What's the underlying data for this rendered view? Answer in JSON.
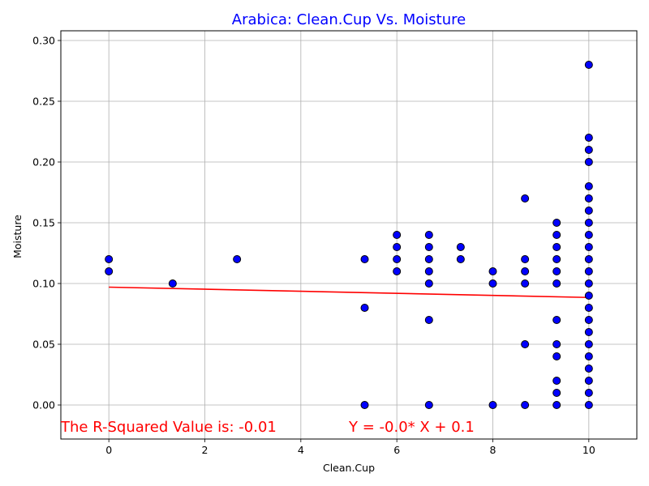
{
  "chart_data": {
    "type": "scatter",
    "title": "Arabica: Clean.Cup Vs. Moisture",
    "xlabel": "Clean.Cup",
    "ylabel": "Moisture",
    "xlim": [
      -1,
      11
    ],
    "ylim": [
      -0.028,
      0.308
    ],
    "xticks": [
      "0",
      "2",
      "4",
      "6",
      "8",
      "10"
    ],
    "yticks": [
      "0.00",
      "0.05",
      "0.10",
      "0.15",
      "0.20",
      "0.25",
      "0.30"
    ],
    "grid": true,
    "marker_color": "#0000ff",
    "marker_edge_color": "#000000",
    "line_color": "#ff0000",
    "title_color": "#0000ff",
    "annotation_color": "#ff0000",
    "points": [
      [
        0,
        0.12
      ],
      [
        0,
        0.11
      ],
      [
        1.33,
        0.1
      ],
      [
        2.67,
        0.12
      ],
      [
        5.33,
        0.12
      ],
      [
        5.33,
        0.08
      ],
      [
        5.33,
        0.0
      ],
      [
        6.0,
        0.14
      ],
      [
        6.0,
        0.13
      ],
      [
        6.0,
        0.12
      ],
      [
        6.0,
        0.11
      ],
      [
        6.67,
        0.14
      ],
      [
        6.67,
        0.13
      ],
      [
        6.67,
        0.12
      ],
      [
        6.67,
        0.11
      ],
      [
        6.67,
        0.1
      ],
      [
        6.67,
        0.07
      ],
      [
        6.67,
        0.0
      ],
      [
        7.33,
        0.13
      ],
      [
        7.33,
        0.12
      ],
      [
        8.0,
        0.11
      ],
      [
        8.0,
        0.1
      ],
      [
        8.0,
        0.0
      ],
      [
        8.67,
        0.17
      ],
      [
        8.67,
        0.12
      ],
      [
        8.67,
        0.11
      ],
      [
        8.67,
        0.1
      ],
      [
        8.67,
        0.05
      ],
      [
        8.67,
        0.0
      ],
      [
        9.33,
        0.15
      ],
      [
        9.33,
        0.14
      ],
      [
        9.33,
        0.13
      ],
      [
        9.33,
        0.12
      ],
      [
        9.33,
        0.11
      ],
      [
        9.33,
        0.1
      ],
      [
        9.33,
        0.07
      ],
      [
        9.33,
        0.05
      ],
      [
        9.33,
        0.04
      ],
      [
        9.33,
        0.02
      ],
      [
        9.33,
        0.01
      ],
      [
        9.33,
        0.0
      ],
      [
        10,
        0.28
      ],
      [
        10,
        0.22
      ],
      [
        10,
        0.21
      ],
      [
        10,
        0.2
      ],
      [
        10,
        0.18
      ],
      [
        10,
        0.17
      ],
      [
        10,
        0.16
      ],
      [
        10,
        0.15
      ],
      [
        10,
        0.14
      ],
      [
        10,
        0.13
      ],
      [
        10,
        0.12
      ],
      [
        10,
        0.11
      ],
      [
        10,
        0.1
      ],
      [
        10,
        0.09
      ],
      [
        10,
        0.08
      ],
      [
        10,
        0.07
      ],
      [
        10,
        0.06
      ],
      [
        10,
        0.05
      ],
      [
        10,
        0.04
      ],
      [
        10,
        0.03
      ],
      [
        10,
        0.02
      ],
      [
        10,
        0.01
      ],
      [
        10,
        0.0
      ]
    ],
    "regression": {
      "x": [
        0,
        10
      ],
      "y": [
        0.097,
        0.0885
      ]
    },
    "annotations": {
      "r_squared": "The R-Squared Value is: -0.01",
      "equation": "Y = -0.0* X + 0.1"
    }
  }
}
